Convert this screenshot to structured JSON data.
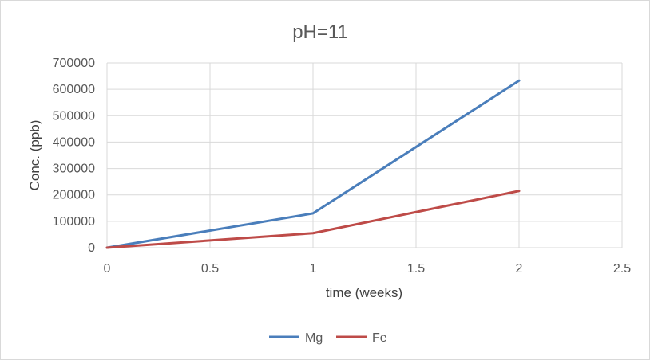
{
  "chart_data": {
    "type": "line",
    "title": "pH=11",
    "xlabel": "time (weeks)",
    "ylabel": "Conc. (ppb)",
    "xlim": [
      0,
      2.5
    ],
    "ylim": [
      0,
      700000
    ],
    "xticks": [
      0,
      0.5,
      1,
      1.5,
      2,
      2.5
    ],
    "yticks": [
      0,
      100000,
      200000,
      300000,
      400000,
      500000,
      600000,
      700000
    ],
    "xtick_labels": [
      "0",
      "0.5",
      "1",
      "1.5",
      "2",
      "2.5"
    ],
    "ytick_labels": [
      "0",
      "100000",
      "200000",
      "300000",
      "400000",
      "500000",
      "600000",
      "700000"
    ],
    "grid": true,
    "legend_position": "bottom",
    "series": [
      {
        "name": "Mg",
        "color": "#4a7ebb",
        "x": [
          0,
          1,
          2
        ],
        "y": [
          0,
          130000,
          633000
        ]
      },
      {
        "name": "Fe",
        "color": "#be4b48",
        "x": [
          0,
          1,
          2
        ],
        "y": [
          0,
          55000,
          215000
        ]
      }
    ]
  }
}
